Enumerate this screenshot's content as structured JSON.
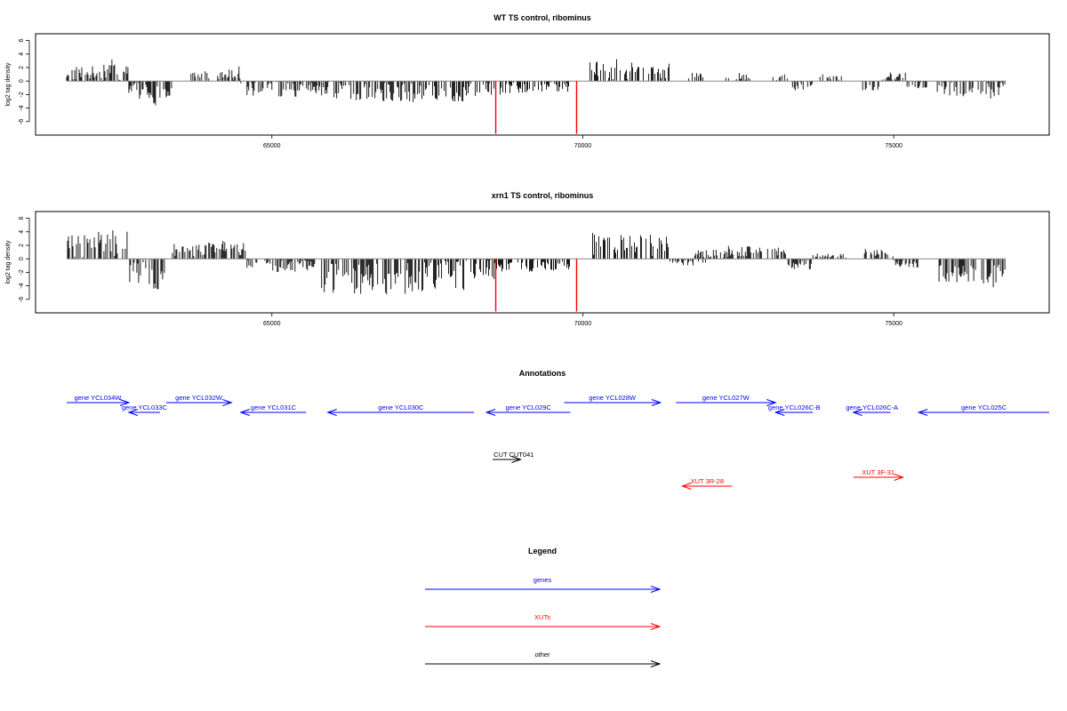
{
  "colors": {
    "gene": "#0000ff",
    "xut": "#ff0000",
    "other": "#000000",
    "marker": "#ff0000",
    "baseline": "#888888"
  },
  "chart_data": [
    {
      "type": "bar",
      "title": "WT TS control, ribominus",
      "xlabel": "",
      "ylabel": "log2 tag density",
      "xlim": [
        61200,
        77500
      ],
      "ylim": [
        -8,
        7
      ],
      "yticks": [
        -6,
        -4,
        -2,
        0,
        2,
        4,
        6
      ],
      "xticks": [
        65000,
        70000,
        75000
      ],
      "grid": false,
      "marker_lines": [
        68600,
        69900
      ],
      "marker_value": -7.8,
      "regions": [
        [
          61700,
          62300,
          1,
          2.2
        ],
        [
          62300,
          62700,
          1,
          3.2
        ],
        [
          62700,
          63000,
          -1,
          2.6
        ],
        [
          63000,
          63200,
          -1,
          3.6
        ],
        [
          63200,
          63400,
          -1,
          2.6
        ],
        [
          63700,
          64100,
          1,
          1.5
        ],
        [
          64100,
          64300,
          1,
          1.8
        ],
        [
          64300,
          64500,
          1,
          2.2
        ],
        [
          64500,
          64900,
          -1,
          2.2
        ],
        [
          64900,
          65400,
          -1,
          2.4
        ],
        [
          65400,
          65800,
          -1,
          1.8
        ],
        [
          65800,
          66600,
          -1,
          3.0
        ],
        [
          66600,
          67400,
          -1,
          3.2
        ],
        [
          67400,
          68100,
          -1,
          3.0
        ],
        [
          68100,
          68600,
          -1,
          2.2
        ],
        [
          68600,
          69300,
          -1,
          2.0
        ],
        [
          69300,
          69800,
          -1,
          1.6
        ],
        [
          70100,
          70600,
          1,
          3.3
        ],
        [
          70600,
          71000,
          1,
          2.8
        ],
        [
          71000,
          71400,
          1,
          2.6
        ],
        [
          71700,
          72000,
          1,
          1.2
        ],
        [
          72300,
          72700,
          1,
          1.2
        ],
        [
          73000,
          73300,
          1,
          1.5
        ],
        [
          73300,
          73700,
          -1,
          1.6
        ],
        [
          73800,
          74200,
          1,
          1.0
        ],
        [
          74500,
          74800,
          -1,
          1.8
        ],
        [
          74800,
          75200,
          1,
          1.3
        ],
        [
          75200,
          75600,
          -1,
          1.5
        ],
        [
          75700,
          76300,
          -1,
          2.4
        ],
        [
          76300,
          76800,
          -1,
          2.6
        ]
      ]
    },
    {
      "type": "bar",
      "title": "xrn1 TS control, ribominus",
      "xlabel": "",
      "ylabel": "log2 tag density",
      "xlim": [
        61200,
        77500
      ],
      "ylim": [
        -8,
        7
      ],
      "yticks": [
        -6,
        -4,
        -2,
        0,
        2,
        4,
        6
      ],
      "xticks": [
        65000,
        70000,
        75000
      ],
      "grid": false,
      "marker_lines": [
        68600,
        69900
      ],
      "marker_value": -7.8,
      "regions": [
        [
          61700,
          62200,
          1,
          3.5
        ],
        [
          62200,
          62700,
          1,
          4.8
        ],
        [
          62700,
          63000,
          -1,
          3.8
        ],
        [
          63000,
          63300,
          -1,
          4.5
        ],
        [
          63400,
          63700,
          1,
          2.2
        ],
        [
          63700,
          64300,
          1,
          2.8
        ],
        [
          64300,
          64600,
          1,
          2.4
        ],
        [
          64600,
          65000,
          -1,
          1.6
        ],
        [
          65000,
          65700,
          -1,
          2.0
        ],
        [
          65800,
          66600,
          -1,
          5.2
        ],
        [
          66600,
          67400,
          -1,
          5.5
        ],
        [
          67400,
          68100,
          -1,
          5.0
        ],
        [
          68100,
          68600,
          -1,
          3.0
        ],
        [
          68600,
          69200,
          -1,
          2.0
        ],
        [
          69200,
          69800,
          -1,
          1.8
        ],
        [
          70100,
          70600,
          1,
          4.0
        ],
        [
          70600,
          71000,
          1,
          3.6
        ],
        [
          71000,
          71400,
          1,
          3.6
        ],
        [
          71400,
          72000,
          -1,
          1.0
        ],
        [
          71800,
          72300,
          1,
          1.4
        ],
        [
          72300,
          72800,
          1,
          2.0
        ],
        [
          72800,
          73300,
          1,
          1.8
        ],
        [
          73300,
          73700,
          -1,
          1.6
        ],
        [
          73700,
          74300,
          1,
          0.8
        ],
        [
          74500,
          75000,
          1,
          1.6
        ],
        [
          75000,
          75400,
          -1,
          1.3
        ],
        [
          75700,
          76300,
          -1,
          3.5
        ],
        [
          76300,
          76800,
          -1,
          4.3
        ]
      ]
    }
  ],
  "annotations": {
    "title": "Annotations",
    "genes": [
      {
        "label": "gene YCL034W",
        "start": 61700,
        "end": 62700,
        "dir": 1,
        "row": 0
      },
      {
        "label": "gene YCL033C",
        "start": 62700,
        "end": 63200,
        "dir": -1,
        "row": 1
      },
      {
        "label": "gene YCL032W",
        "start": 63300,
        "end": 64350,
        "dir": 1,
        "row": 0
      },
      {
        "label": "gene YCL031C",
        "start": 64500,
        "end": 65550,
        "dir": -1,
        "row": 1
      },
      {
        "label": "gene YCL030C",
        "start": 65900,
        "end": 68250,
        "dir": -1,
        "row": 1
      },
      {
        "label": "gene YCL029C",
        "start": 68450,
        "end": 69800,
        "dir": -1,
        "row": 1
      },
      {
        "label": "gene YCL028W",
        "start": 69700,
        "end": 71250,
        "dir": 1,
        "row": 0
      },
      {
        "label": "gene YCL027W",
        "start": 71500,
        "end": 73100,
        "dir": 1,
        "row": 0
      },
      {
        "label": "gene YCL026C-B",
        "start": 73100,
        "end": 73700,
        "dir": -1,
        "row": 1
      },
      {
        "label": "gene YCL026C-A",
        "start": 74350,
        "end": 74950,
        "dir": -1,
        "row": 1
      },
      {
        "label": "gene YCL025C",
        "start": 75400,
        "end": 77500,
        "dir": -1,
        "row": 1
      }
    ],
    "others": [
      {
        "label": "CUT CUT041",
        "start": 68550,
        "end": 69000,
        "dir": 1
      }
    ],
    "xuts": [
      {
        "label": "XUT 3R-28",
        "start": 71600,
        "end": 72400,
        "dir": -1,
        "row": 1
      },
      {
        "label": "XUT 3F-31",
        "start": 74350,
        "end": 75150,
        "dir": 1,
        "row": 0
      }
    ]
  },
  "legend": {
    "title": "Legend",
    "items": [
      {
        "label": "genes",
        "color": "#0000ff"
      },
      {
        "label": "XUTs",
        "color": "#ff0000"
      },
      {
        "label": "other",
        "color": "#000000"
      }
    ]
  }
}
